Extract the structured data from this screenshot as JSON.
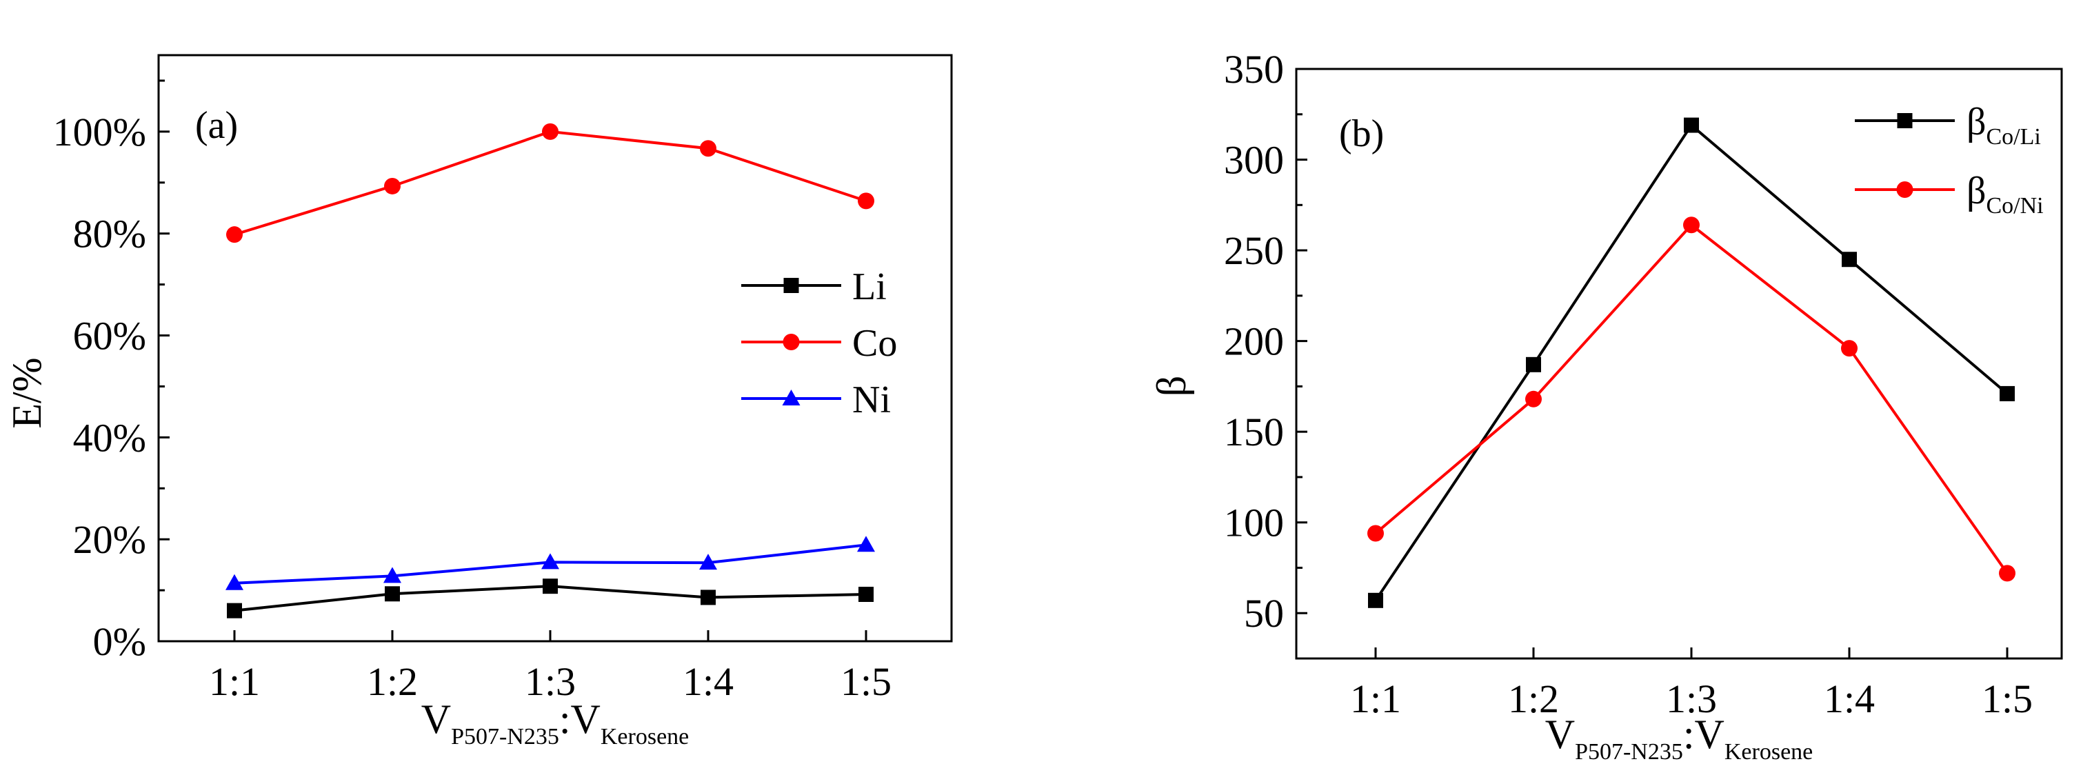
{
  "chart_data": [
    {
      "panel": "(a)",
      "type": "line",
      "categories": [
        "1:1",
        "1:2",
        "1:3",
        "1:4",
        "1:5"
      ],
      "ylabel": "E/%",
      "xlabel": {
        "main1": "V",
        "sub1": "P507-N235",
        "colon": ":",
        "main2": "V",
        "sub2": "Kerosene"
      },
      "ylim": [
        0,
        115
      ],
      "yticks": [
        0,
        20,
        40,
        60,
        80,
        100
      ],
      "ytick_labels": [
        "0%",
        "20%",
        "40%",
        "60%",
        "80%",
        "100%"
      ],
      "legend_position": "center-right",
      "series": [
        {
          "name": "Li",
          "color": "#000000",
          "marker": "square",
          "values": [
            6,
            9.3,
            10.8,
            8.6,
            9.2
          ]
        },
        {
          "name": "Co",
          "color": "#ff0000",
          "marker": "circle",
          "values": [
            79.8,
            89.3,
            100,
            96.7,
            86.4
          ]
        },
        {
          "name": "Ni",
          "color": "#0000ff",
          "marker": "triangle",
          "values": [
            11.4,
            12.8,
            15.5,
            15.4,
            18.9
          ]
        }
      ]
    },
    {
      "panel": "(b)",
      "type": "line",
      "categories": [
        "1:1",
        "1:2",
        "1:3",
        "1:4",
        "1:5"
      ],
      "ylabel": "β",
      "xlabel": {
        "main1": "V",
        "sub1": "P507-N235",
        "colon": ":",
        "main2": "V",
        "sub2": "Kerosene"
      },
      "ylim": [
        25,
        350
      ],
      "yticks": [
        50,
        100,
        150,
        200,
        250,
        300,
        350
      ],
      "ytick_labels": [
        "50",
        "100",
        "150",
        "200",
        "250",
        "300",
        "350"
      ],
      "legend_position": "top-right",
      "series": [
        {
          "name": "β",
          "sub": "Co/Li",
          "color": "#000000",
          "marker": "square",
          "values": [
            57,
            187,
            319,
            245,
            171
          ]
        },
        {
          "name": "β",
          "sub": "Co/Ni",
          "color": "#ff0000",
          "marker": "circle",
          "values": [
            94,
            168,
            264,
            196,
            72
          ]
        }
      ]
    }
  ]
}
